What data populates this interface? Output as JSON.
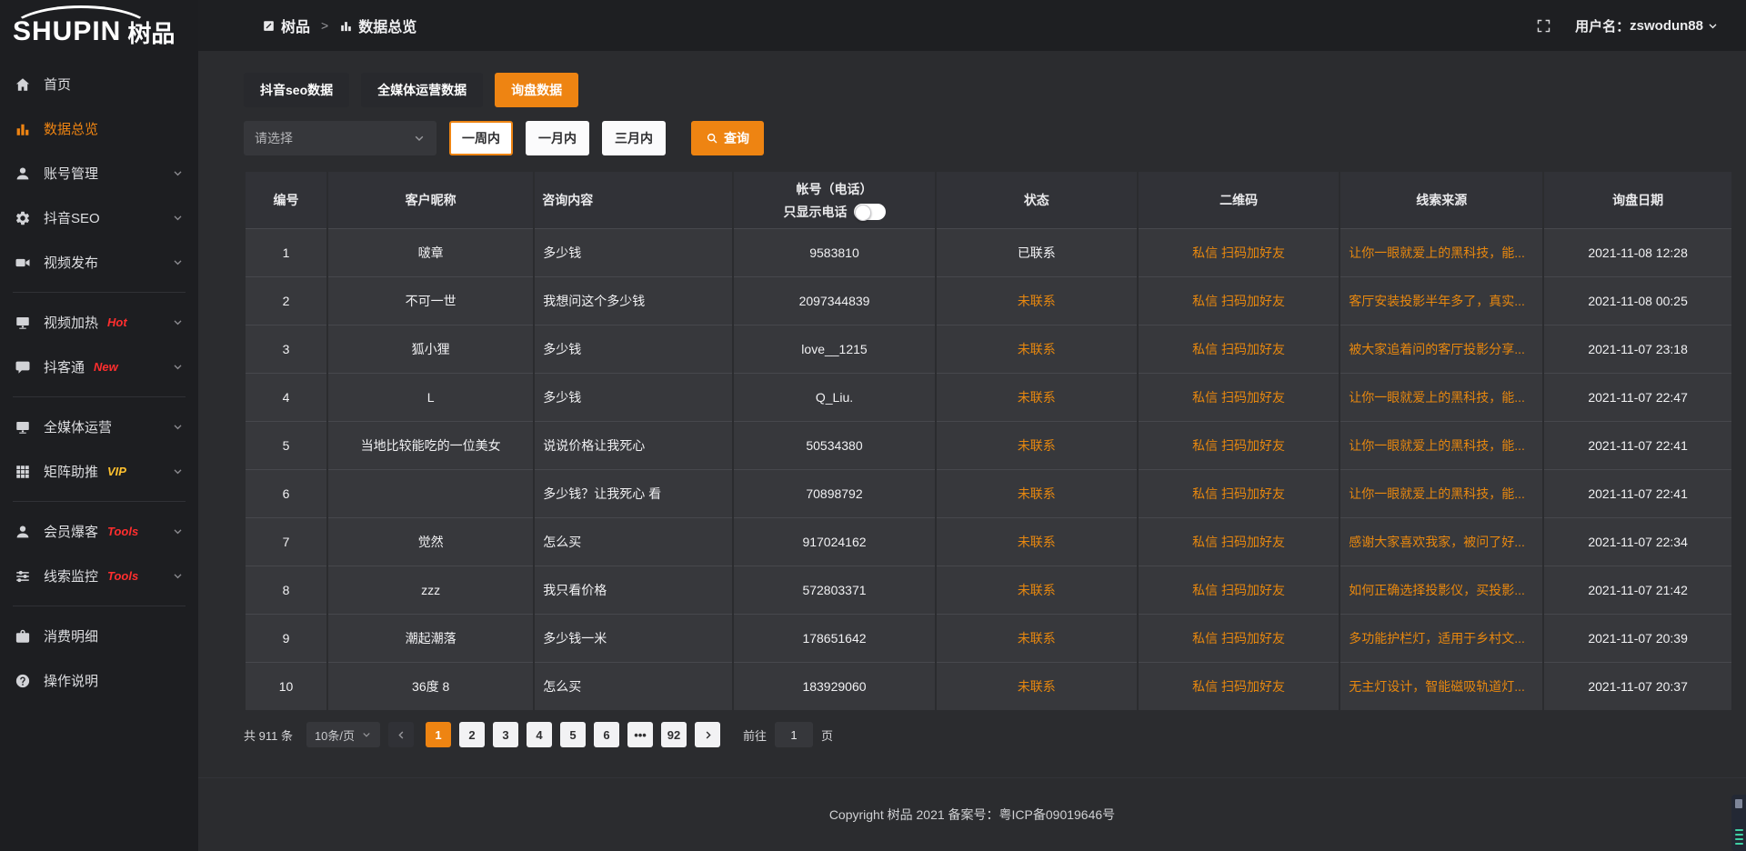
{
  "colors": {
    "accent": "#ee8412",
    "link_orange": "#e8880f",
    "badge_red": "#ff2e2e",
    "badge_vip": "#ffc12e",
    "sidebar_bg": "#1d1e21",
    "content_bg": "#2b2c2f",
    "row_bg": "#37383c"
  },
  "logo": {
    "latin": "SHUPIN",
    "cn": "树品"
  },
  "header": {
    "breadcrumb_root": "树品",
    "breadcrumb_sep": ">",
    "breadcrumb_current": "数据总览",
    "username_label": "用户名：",
    "username": "zswodun88"
  },
  "sidebar": {
    "items": [
      {
        "id": "home",
        "icon": "home-icon",
        "sym": "i-home",
        "label": "首页"
      },
      {
        "id": "data-overview",
        "icon": "bar-chart-icon",
        "sym": "i-chart",
        "label": "数据总览",
        "active": true
      },
      {
        "id": "account-manage",
        "icon": "user-icon",
        "sym": "i-user",
        "label": "账号管理",
        "chevron": true
      },
      {
        "id": "douyin-seo",
        "icon": "gear-icon",
        "sym": "i-gear",
        "label": "抖音SEO",
        "chevron": true
      },
      {
        "id": "video-publish",
        "icon": "video-camera-icon",
        "sym": "i-video",
        "label": "视频发布",
        "chevron": true,
        "divider": true
      },
      {
        "id": "video-heat",
        "icon": "monitor-icon",
        "sym": "i-display",
        "label": "视频加热",
        "badge": "Hot",
        "badge_color": "#ff2e2e",
        "chevron": true
      },
      {
        "id": "douketong",
        "icon": "chat-bubble-icon",
        "sym": "i-chat",
        "label": "抖客通",
        "badge": "New",
        "badge_color": "#ff2e2e",
        "chevron": true,
        "divider": true
      },
      {
        "id": "media-operation",
        "icon": "monitor-icon",
        "sym": "i-display",
        "label": "全媒体运营",
        "chevron": true
      },
      {
        "id": "matrix-boost",
        "icon": "grid-icon",
        "sym": "i-grid",
        "label": "矩阵助推",
        "badge": "VIP",
        "badge_color": "#ffc12e",
        "chevron": true,
        "divider": true
      },
      {
        "id": "member-baoke",
        "icon": "member-icon",
        "sym": "i-user",
        "label": "会员爆客",
        "badge": "Tools",
        "badge_color": "#ff2e2e",
        "chevron": true
      },
      {
        "id": "clue-monitor",
        "icon": "sliders-icon",
        "sym": "i-sliders",
        "label": "线索监控",
        "badge": "Tools",
        "badge_color": "#ff2e2e",
        "chevron": true,
        "divider": true
      },
      {
        "id": "expense-detail",
        "icon": "wallet-icon",
        "sym": "i-wallet",
        "label": "消费明细"
      },
      {
        "id": "operation-guide",
        "icon": "help-circle-icon",
        "sym": "i-help",
        "label": "操作说明"
      }
    ]
  },
  "tabs": [
    {
      "label": "抖音seo数据"
    },
    {
      "label": "全媒体运营数据"
    },
    {
      "label": "询盘数据",
      "active": true
    }
  ],
  "filter": {
    "select_placeholder": "请选择",
    "ranges": [
      {
        "label": "一周内",
        "active": true
      },
      {
        "label": "一月内"
      },
      {
        "label": "三月内"
      }
    ],
    "search_label": "查询"
  },
  "table": {
    "headers": [
      "编号",
      "客户昵称",
      "咨询内容",
      "帐号（电话）",
      "状态",
      "二维码",
      "线索来源",
      "询盘日期"
    ],
    "phone_toggle_label": "只显示电话",
    "rows": [
      {
        "num": "1",
        "nickname": "啵章",
        "content": "多少钱",
        "account": "9583810",
        "status": "已联系",
        "contacted": true,
        "qr": "私信 扫码加好友",
        "source": "让你一眼就爱上的黑科技，能...",
        "date": "2021-11-08 12:28"
      },
      {
        "num": "2",
        "nickname": "不可一世",
        "content": "我想问这个多少钱",
        "account": "2097344839",
        "status": "未联系",
        "contacted": false,
        "qr": "私信 扫码加好友",
        "source": "客厅安装投影半年多了，真实...",
        "date": "2021-11-08 00:25"
      },
      {
        "num": "3",
        "nickname": "狐小狸",
        "content": "多少钱",
        "account": "love__1215",
        "status": "未联系",
        "contacted": false,
        "qr": "私信 扫码加好友",
        "source": "被大家追着问的客厅投影分享...",
        "date": "2021-11-07 23:18"
      },
      {
        "num": "4",
        "nickname": "L",
        "content": "多少钱",
        "account": "Q_Liu.",
        "status": "未联系",
        "contacted": false,
        "qr": "私信 扫码加好友",
        "source": "让你一眼就爱上的黑科技，能...",
        "date": "2021-11-07 22:47"
      },
      {
        "num": "5",
        "nickname": "当地比较能吃的一位美女",
        "content": "说说价格让我死心",
        "account": "50534380",
        "status": "未联系",
        "contacted": false,
        "qr": "私信 扫码加好友",
        "source": "让你一眼就爱上的黑科技，能...",
        "date": "2021-11-07 22:41"
      },
      {
        "num": "6",
        "nickname": "",
        "content": "多少钱？让我死心 看",
        "account": "70898792",
        "status": "未联系",
        "contacted": false,
        "qr": "私信 扫码加好友",
        "source": "让你一眼就爱上的黑科技，能...",
        "date": "2021-11-07 22:41"
      },
      {
        "num": "7",
        "nickname": "觉然",
        "content": "怎么买",
        "account": "917024162",
        "status": "未联系",
        "contacted": false,
        "qr": "私信 扫码加好友",
        "source": "感谢大家喜欢我家，被问了好...",
        "date": "2021-11-07 22:34"
      },
      {
        "num": "8",
        "nickname": "zzz",
        "content": "我只看价格",
        "account": "572803371",
        "status": "未联系",
        "contacted": false,
        "qr": "私信 扫码加好友",
        "source": "如何正确选择投影仪，买投影...",
        "date": "2021-11-07 21:42"
      },
      {
        "num": "9",
        "nickname": "潮起潮落",
        "content": "多少钱一米",
        "account": "178651642",
        "status": "未联系",
        "contacted": false,
        "qr": "私信 扫码加好友",
        "source": "多功能护栏灯，适用于乡村文...",
        "date": "2021-11-07 20:39"
      },
      {
        "num": "10",
        "nickname": "36度 8",
        "content": "怎么买",
        "account": "183929060",
        "status": "未联系",
        "contacted": false,
        "qr": "私信 扫码加好友",
        "source": "无主灯设计，智能磁吸轨道灯...",
        "date": "2021-11-07 20:37"
      }
    ]
  },
  "pagination": {
    "total": "共 911 条",
    "page_size": "10条/页",
    "pages": [
      {
        "label": "1",
        "active": true
      },
      {
        "label": "2"
      },
      {
        "label": "3"
      },
      {
        "label": "4"
      },
      {
        "label": "5"
      },
      {
        "label": "6"
      },
      {
        "label": "•••",
        "ellipsis": true
      },
      {
        "label": "92"
      }
    ],
    "goto_label": "前往",
    "goto_value": "1",
    "page_suffix": "页"
  },
  "footer": {
    "copyright": "Copyright 树品 2021 备案号：粤ICP备09019646号"
  }
}
